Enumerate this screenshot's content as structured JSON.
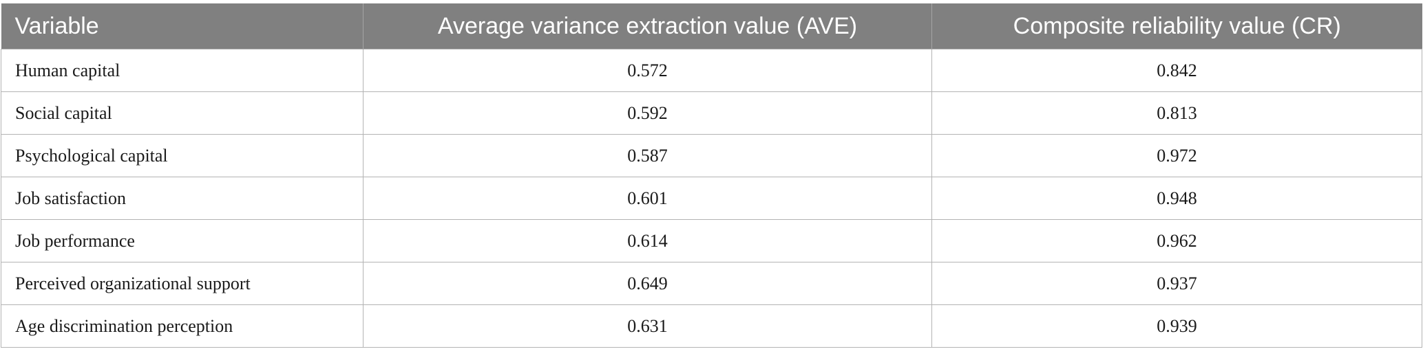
{
  "table": {
    "headers": [
      "Variable",
      "Average variance extraction value (AVE)",
      "Composite reliability value (CR)"
    ],
    "rows": [
      [
        "Human capital",
        "0.572",
        "0.842"
      ],
      [
        "Social capital",
        "0.592",
        "0.813"
      ],
      [
        "Psychological capital",
        "0.587",
        "0.972"
      ],
      [
        "Job satisfaction",
        "0.601",
        "0.948"
      ],
      [
        "Job performance",
        "0.614",
        "0.962"
      ],
      [
        "Perceived organizational support",
        "0.649",
        "0.937"
      ],
      [
        "Age discrimination perception",
        "0.631",
        "0.939"
      ]
    ]
  },
  "colors": {
    "header_background": "#808080",
    "header_text": "#ffffff",
    "grid_line": "#b3b3b3"
  }
}
